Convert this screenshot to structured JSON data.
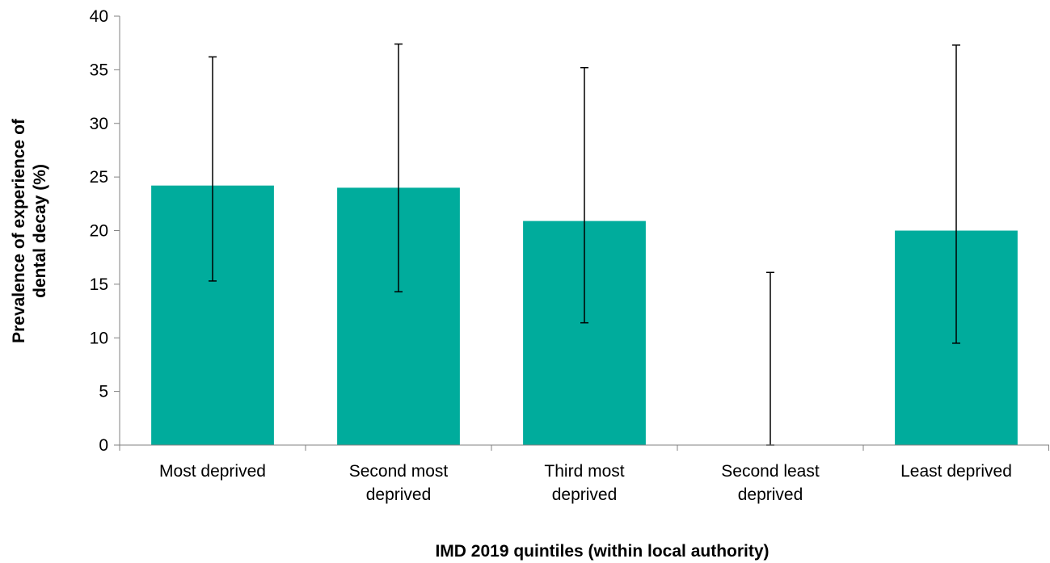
{
  "chart_data": {
    "type": "bar",
    "title": "",
    "xlabel": "IMD 2019 quintiles (within local authority)",
    "ylabel_lines": [
      "Prevalence of experience of",
      "dental decay (%)"
    ],
    "categories": [
      [
        "Most deprived"
      ],
      [
        "Second most",
        "deprived"
      ],
      [
        "Third most",
        "deprived"
      ],
      [
        "Second least",
        "deprived"
      ],
      [
        "Least deprived"
      ]
    ],
    "values": [
      24.2,
      24.0,
      20.9,
      0,
      20.0
    ],
    "error_low": [
      15.3,
      14.3,
      11.4,
      0,
      9.5
    ],
    "error_high": [
      36.2,
      37.4,
      35.2,
      16.1,
      37.3
    ],
    "ylim": [
      0,
      40
    ],
    "yticks": [
      0,
      5,
      10,
      15,
      20,
      25,
      30,
      35,
      40
    ],
    "grid": false,
    "legend": "none",
    "bar_color": "#00ac9c",
    "axis_color": "#808080",
    "error_color": "#000000"
  }
}
